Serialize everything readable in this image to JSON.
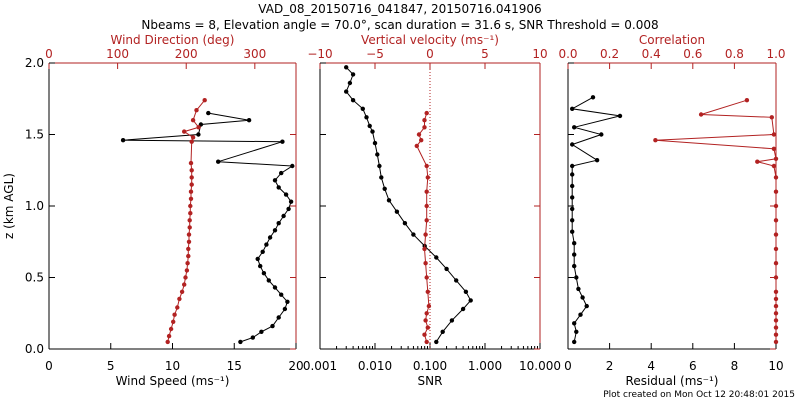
{
  "title_line1": "VAD_08_20150716_041847, 20150716.041906",
  "title_line2": "Nbeams = 8, Elevation angle = 70.0°, scan duration = 31.6 s, SNR Threshold = 0.008",
  "footer": "Plot created on Mon Oct 12 20:48:01 2015",
  "colors": {
    "primary": "#000000",
    "secondary": "#b22222"
  },
  "chart_data": [
    {
      "type": "line",
      "ylabel": "z (km AGL)",
      "ylim": [
        0,
        2
      ],
      "yticks": [
        "0.0",
        "0.5",
        "1.0",
        "1.5",
        "2.0"
      ],
      "bottom_axis": {
        "label": "Wind Speed (ms⁻¹)",
        "range": [
          0,
          20
        ],
        "ticks": [
          "0",
          "5",
          "10",
          "15",
          "20"
        ]
      },
      "top_axis": {
        "label": "Wind Direction (deg)",
        "range": [
          0,
          360
        ],
        "ticks": [
          "0",
          "100",
          "200",
          "300"
        ]
      },
      "series": [
        {
          "name": "Wind Speed",
          "axis": "bottom",
          "points": [
            [
              15.5,
              0.05
            ],
            [
              16.5,
              0.08
            ],
            [
              17.2,
              0.12
            ],
            [
              18.1,
              0.16
            ],
            [
              18.6,
              0.22
            ],
            [
              19.1,
              0.28
            ],
            [
              19.3,
              0.33
            ],
            [
              18.8,
              0.38
            ],
            [
              18.3,
              0.43
            ],
            [
              17.8,
              0.48
            ],
            [
              17.4,
              0.53
            ],
            [
              17.1,
              0.58
            ],
            [
              16.9,
              0.63
            ],
            [
              17.3,
              0.68
            ],
            [
              17.6,
              0.73
            ],
            [
              17.9,
              0.78
            ],
            [
              18.3,
              0.83
            ],
            [
              18.6,
              0.88
            ],
            [
              19.0,
              0.93
            ],
            [
              19.4,
              0.98
            ],
            [
              19.6,
              1.03
            ],
            [
              19.2,
              1.08
            ],
            [
              18.6,
              1.13
            ],
            [
              18.3,
              1.18
            ],
            [
              18.8,
              1.23
            ],
            [
              19.7,
              1.28
            ],
            [
              13.7,
              1.31
            ],
            [
              18.9,
              1.45
            ],
            [
              6.0,
              1.46
            ],
            [
              12.1,
              1.5
            ],
            [
              12.3,
              1.57
            ],
            [
              16.2,
              1.6
            ],
            [
              12.9,
              1.65
            ]
          ]
        },
        {
          "name": "Wind Direction",
          "axis": "top",
          "points": [
            [
              173,
              0.05
            ],
            [
              175,
              0.09
            ],
            [
              178,
              0.14
            ],
            [
              181,
              0.19
            ],
            [
              183,
              0.24
            ],
            [
              187,
              0.29
            ],
            [
              190,
              0.35
            ],
            [
              194,
              0.4
            ],
            [
              197,
              0.45
            ],
            [
              199,
              0.5
            ],
            [
              201,
              0.55
            ],
            [
              202,
              0.6
            ],
            [
              203,
              0.65
            ],
            [
              203,
              0.7
            ],
            [
              204,
              0.75
            ],
            [
              204,
              0.8
            ],
            [
              205,
              0.85
            ],
            [
              205,
              0.9
            ],
            [
              206,
              0.95
            ],
            [
              206,
              1.0
            ],
            [
              207,
              1.05
            ],
            [
              207,
              1.1
            ],
            [
              208,
              1.15
            ],
            [
              208,
              1.2
            ],
            [
              208,
              1.25
            ],
            [
              207,
              1.3
            ],
            [
              208,
              1.45
            ],
            [
              210,
              1.48
            ],
            [
              197,
              1.52
            ],
            [
              218,
              1.55
            ],
            [
              210,
              1.6
            ],
            [
              215,
              1.67
            ],
            [
              227,
              1.74
            ]
          ]
        }
      ]
    },
    {
      "type": "line",
      "bottom_axis": {
        "label": "SNR",
        "scale": "log",
        "range": [
          0.001,
          10
        ],
        "ticks": [
          "0.001",
          "0.010",
          "0.100",
          "1.000",
          "10.000"
        ]
      },
      "top_axis": {
        "label": "Vertical velocity (ms⁻¹)",
        "range": [
          -10,
          10
        ],
        "ticks": [
          "−10",
          "−5",
          "0",
          "5",
          "10"
        ]
      },
      "ylim": [
        0,
        2
      ],
      "series": [
        {
          "name": "SNR",
          "axis": "bottom",
          "points": [
            [
              0.13,
              0.05
            ],
            [
              0.17,
              0.12
            ],
            [
              0.25,
              0.2
            ],
            [
              0.4,
              0.28
            ],
            [
              0.55,
              0.34
            ],
            [
              0.45,
              0.4
            ],
            [
              0.3,
              0.48
            ],
            [
              0.2,
              0.56
            ],
            [
              0.13,
              0.64
            ],
            [
              0.08,
              0.72
            ],
            [
              0.05,
              0.8
            ],
            [
              0.035,
              0.88
            ],
            [
              0.025,
              0.96
            ],
            [
              0.018,
              1.04
            ],
            [
              0.015,
              1.12
            ],
            [
              0.013,
              1.2
            ],
            [
              0.012,
              1.28
            ],
            [
              0.011,
              1.36
            ],
            [
              0.01,
              1.44
            ],
            [
              0.009,
              1.52
            ],
            [
              0.008,
              1.56
            ],
            [
              0.007,
              1.62
            ],
            [
              0.006,
              1.68
            ],
            [
              0.004,
              1.74
            ],
            [
              0.003,
              1.8
            ],
            [
              0.0035,
              1.86
            ],
            [
              0.004,
              1.92
            ],
            [
              0.003,
              1.97
            ]
          ]
        },
        {
          "name": "Vertical velocity",
          "axis": "top",
          "points": [
            [
              -0.3,
              0.05
            ],
            [
              -0.5,
              0.1
            ],
            [
              -0.2,
              0.15
            ],
            [
              -0.4,
              0.2
            ],
            [
              -0.3,
              0.25
            ],
            [
              -0.1,
              0.3
            ],
            [
              -0.2,
              0.4
            ],
            [
              -0.3,
              0.5
            ],
            [
              -0.4,
              0.6
            ],
            [
              -0.5,
              0.7
            ],
            [
              -0.4,
              0.8
            ],
            [
              -0.3,
              0.9
            ],
            [
              -0.3,
              1.0
            ],
            [
              -0.3,
              1.1
            ],
            [
              -0.2,
              1.2
            ],
            [
              -0.3,
              1.28
            ],
            [
              -1.2,
              1.42
            ],
            [
              -0.8,
              1.46
            ],
            [
              -1.0,
              1.5
            ],
            [
              -0.5,
              1.55
            ],
            [
              -0.5,
              1.6
            ],
            [
              -0.3,
              1.65
            ]
          ]
        }
      ],
      "reference_line": {
        "axis": "top",
        "value": 0,
        "style": "dotted"
      }
    },
    {
      "type": "line",
      "bottom_axis": {
        "label": "Residual (ms⁻¹)",
        "range": [
          0,
          10
        ],
        "ticks": [
          "0",
          "2",
          "4",
          "6",
          "8",
          "10"
        ]
      },
      "top_axis": {
        "label": "Correlation",
        "range": [
          0,
          1
        ],
        "ticks": [
          "0.0",
          "0.2",
          "0.4",
          "0.6",
          "0.8",
          "1.0"
        ]
      },
      "ylim": [
        0,
        2
      ],
      "series": [
        {
          "name": "Residual",
          "axis": "bottom",
          "points": [
            [
              0.3,
              0.05
            ],
            [
              0.4,
              0.12
            ],
            [
              0.3,
              0.18
            ],
            [
              0.6,
              0.24
            ],
            [
              0.9,
              0.3
            ],
            [
              0.7,
              0.36
            ],
            [
              0.5,
              0.42
            ],
            [
              0.4,
              0.5
            ],
            [
              0.3,
              0.58
            ],
            [
              0.3,
              0.66
            ],
            [
              0.3,
              0.74
            ],
            [
              0.2,
              0.82
            ],
            [
              0.2,
              0.9
            ],
            [
              0.2,
              0.98
            ],
            [
              0.2,
              1.06
            ],
            [
              0.2,
              1.14
            ],
            [
              0.2,
              1.22
            ],
            [
              0.2,
              1.28
            ],
            [
              1.4,
              1.32
            ],
            [
              0.2,
              1.43
            ],
            [
              1.6,
              1.5
            ],
            [
              0.3,
              1.55
            ],
            [
              2.5,
              1.63
            ],
            [
              0.2,
              1.68
            ],
            [
              1.2,
              1.76
            ]
          ]
        },
        {
          "name": "Correlation",
          "axis": "top",
          "points": [
            [
              1.0,
              0.05
            ],
            [
              1.0,
              0.1
            ],
            [
              1.0,
              0.15
            ],
            [
              1.0,
              0.2
            ],
            [
              1.0,
              0.25
            ],
            [
              1.0,
              0.3
            ],
            [
              1.0,
              0.35
            ],
            [
              1.0,
              0.4
            ],
            [
              1.0,
              0.5
            ],
            [
              1.0,
              0.6
            ],
            [
              1.0,
              0.7
            ],
            [
              1.0,
              0.8
            ],
            [
              1.0,
              0.9
            ],
            [
              1.0,
              1.0
            ],
            [
              1.0,
              1.1
            ],
            [
              1.0,
              1.2
            ],
            [
              0.99,
              1.28
            ],
            [
              0.91,
              1.31
            ],
            [
              1.0,
              1.33
            ],
            [
              0.99,
              1.4
            ],
            [
              0.42,
              1.46
            ],
            [
              0.99,
              1.5
            ],
            [
              0.98,
              1.62
            ],
            [
              0.64,
              1.64
            ],
            [
              0.86,
              1.74
            ]
          ]
        }
      ]
    }
  ]
}
